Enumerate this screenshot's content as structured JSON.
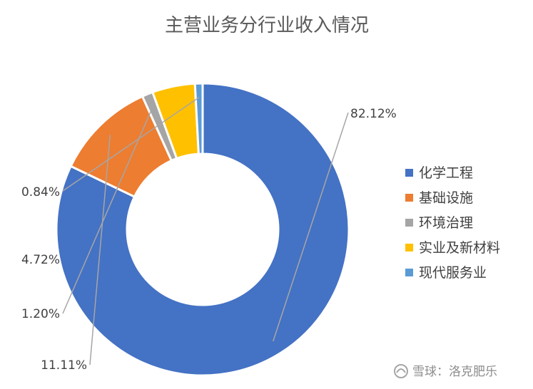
{
  "chart_data": {
    "type": "pie",
    "variant": "donut",
    "title": "主营业务分行业收入情况",
    "categories": [
      "化学工程",
      "基础设施",
      "环境治理",
      "实业及新材料",
      "现代服务业"
    ],
    "values": [
      82.12,
      11.11,
      1.2,
      4.72,
      0.84
    ],
    "labels": [
      "82.12%",
      "11.11%",
      "1.20%",
      "4.72%",
      "0.84%"
    ],
    "colors": [
      "#4472C4",
      "#ED7D31",
      "#A5A5A5",
      "#FFC000",
      "#5B9BD5"
    ],
    "legend_position": "right"
  },
  "watermark": {
    "text": "雪球：洛克肥乐",
    "icon": "snowball-logo-icon"
  }
}
